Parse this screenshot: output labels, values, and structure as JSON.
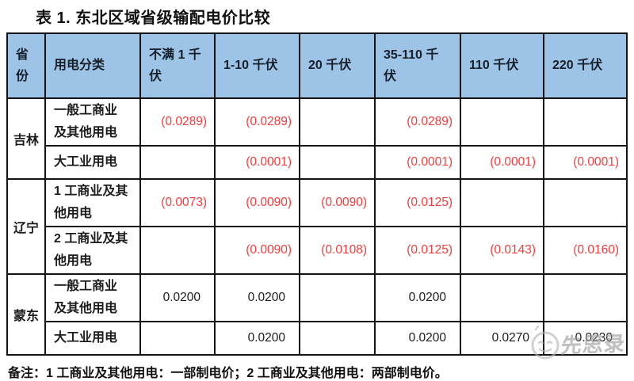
{
  "title": "表 1. 东北区域省级输配电价比较",
  "table": {
    "columns": [
      "省\n份",
      "用电分类",
      "不满 1 千\n伏",
      "1-10 千伏",
      "20 千伏",
      "35-110 千\n伏",
      "110 千伏",
      "220 千伏"
    ],
    "groups": [
      {
        "province": "吉林",
        "rows": [
          {
            "category": "一般工商业\n及其他用电",
            "values": [
              "(0.0289)",
              "(0.0289)",
              "",
              "(0.0289)",
              "",
              ""
            ]
          },
          {
            "category": "大工业用电",
            "values": [
              "",
              "(0.0001)",
              "",
              "(0.0001)",
              "(0.0001)",
              "(0.0001)"
            ]
          }
        ]
      },
      {
        "province": "辽宁",
        "rows": [
          {
            "category": "1 工商业及其\n他用电",
            "values": [
              "(0.0073)",
              "(0.0090)",
              "(0.0090)",
              "(0.0125)",
              "",
              ""
            ]
          },
          {
            "category": "2 工商业及其\n他用电",
            "values": [
              "",
              "(0.0090)",
              "(0.0108)",
              "(0.0125)",
              "(0.0143)",
              "(0.0160)"
            ]
          }
        ]
      },
      {
        "province": "蒙东",
        "rows": [
          {
            "category": "一般工商业\n及其他用电",
            "values": [
              "0.0200",
              "0.0200",
              "",
              "0.0200",
              "",
              ""
            ]
          },
          {
            "category": "大工业用电",
            "values": [
              "",
              "0.0200",
              "",
              "0.0200",
              "0.0270",
              "0.0230"
            ]
          }
        ]
      }
    ]
  },
  "footnote": "备注：1 工商业及其他用电：一部制电价；2 工商业及其他用电：两部制电价。",
  "watermark": {
    "text": "先思录",
    "logo": "smiley-face-icon"
  },
  "colors": {
    "header_bg": "#9dc3e6",
    "negative_value": "#fb3b3b",
    "positive_value": "#1c1c1c",
    "border": "#141414",
    "watermark_gray": "#9a9a9a"
  }
}
